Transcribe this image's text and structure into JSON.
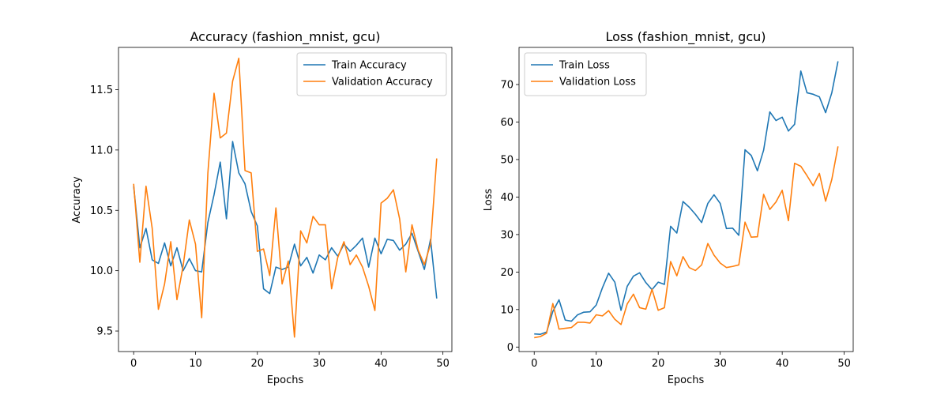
{
  "chart_data": [
    {
      "type": "line",
      "title": "Accuracy (fashion_mnist, gcu)",
      "xlabel": "Epochs",
      "ylabel": "Accuracy",
      "xlim": [
        -2.45,
        51.45
      ],
      "ylim": [
        9.33,
        11.85
      ],
      "xticks": [
        0,
        10,
        20,
        30,
        40,
        50
      ],
      "yticks": [
        9.5,
        10.0,
        10.5,
        11.0,
        11.5
      ],
      "legend_position": "top-right",
      "x": [
        0,
        1,
        2,
        3,
        4,
        5,
        6,
        7,
        8,
        9,
        10,
        11,
        12,
        13,
        14,
        15,
        16,
        17,
        18,
        19,
        20,
        21,
        22,
        23,
        24,
        25,
        26,
        27,
        28,
        29,
        30,
        31,
        32,
        33,
        34,
        35,
        36,
        37,
        38,
        39,
        40,
        41,
        42,
        43,
        44,
        45,
        46,
        47,
        48,
        49
      ],
      "series": [
        {
          "name": "Train Accuracy",
          "color": "#1f77b4",
          "values": [
            10.7,
            10.19,
            10.35,
            10.09,
            10.06,
            10.23,
            10.04,
            10.19,
            10.0,
            10.1,
            10.0,
            9.99,
            10.4,
            10.63,
            10.9,
            10.43,
            11.07,
            10.81,
            10.72,
            10.49,
            10.37,
            9.85,
            9.81,
            10.03,
            10.01,
            10.03,
            10.22,
            10.04,
            10.11,
            9.98,
            10.13,
            10.09,
            10.19,
            10.12,
            10.22,
            10.16,
            10.21,
            10.27,
            10.03,
            10.27,
            10.14,
            10.26,
            10.25,
            10.17,
            10.22,
            10.31,
            10.16,
            10.01,
            10.26,
            9.77
          ]
        },
        {
          "name": "Validation Accuracy",
          "color": "#ff7f0e",
          "values": [
            10.72,
            10.07,
            10.7,
            10.35,
            9.68,
            9.89,
            10.24,
            9.76,
            10.04,
            10.42,
            10.22,
            9.61,
            10.81,
            11.47,
            11.1,
            11.14,
            11.57,
            11.76,
            10.83,
            10.81,
            10.16,
            10.18,
            9.96,
            10.52,
            9.89,
            10.08,
            9.45,
            10.33,
            10.23,
            10.45,
            10.38,
            10.38,
            9.85,
            10.11,
            10.24,
            10.05,
            10.13,
            10.03,
            9.87,
            9.67,
            10.56,
            10.6,
            10.67,
            10.43,
            9.99,
            10.38,
            10.17,
            10.05,
            10.22,
            10.93
          ]
        }
      ]
    },
    {
      "type": "line",
      "title": "Loss (fashion_mnist, gcu)",
      "xlabel": "Epochs",
      "ylabel": "Loss",
      "xlim": [
        -2.45,
        51.45
      ],
      "ylim": [
        -1.2,
        79.9
      ],
      "xticks": [
        0,
        10,
        20,
        30,
        40,
        50
      ],
      "yticks": [
        0,
        10,
        20,
        30,
        40,
        50,
        60,
        70
      ],
      "legend_position": "top-left",
      "x": [
        0,
        1,
        2,
        3,
        4,
        5,
        6,
        7,
        8,
        9,
        10,
        11,
        12,
        13,
        14,
        15,
        16,
        17,
        18,
        19,
        20,
        21,
        22,
        23,
        24,
        25,
        26,
        27,
        28,
        29,
        30,
        31,
        32,
        33,
        34,
        35,
        36,
        37,
        38,
        39,
        40,
        41,
        42,
        43,
        44,
        45,
        46,
        47,
        48,
        49
      ],
      "series": [
        {
          "name": "Train Loss",
          "color": "#1f77b4",
          "values": [
            3.5,
            3.4,
            4.0,
            9.5,
            12.6,
            7.2,
            6.9,
            8.6,
            9.3,
            9.4,
            11.2,
            15.8,
            19.7,
            17.3,
            9.8,
            16.2,
            18.9,
            19.8,
            17.2,
            15.3,
            17.3,
            16.7,
            32.2,
            30.4,
            38.8,
            37.3,
            35.4,
            33.2,
            38.3,
            40.6,
            38.3,
            31.6,
            31.7,
            29.8,
            52.6,
            51.1,
            47.0,
            52.5,
            62.7,
            60.4,
            61.3,
            57.6,
            59.4,
            73.6,
            67.8,
            67.4,
            66.7,
            62.5,
            67.8,
            76.2
          ]
        },
        {
          "name": "Validation Loss",
          "color": "#ff7f0e",
          "values": [
            2.5,
            2.8,
            3.7,
            11.6,
            4.8,
            5.0,
            5.2,
            6.6,
            6.6,
            6.4,
            8.6,
            8.3,
            9.7,
            7.4,
            6.0,
            11.5,
            14.1,
            10.5,
            10.1,
            15.4,
            9.8,
            10.5,
            22.8,
            19.0,
            24.1,
            21.2,
            20.4,
            21.9,
            27.6,
            24.5,
            22.4,
            21.2,
            21.5,
            21.9,
            33.3,
            29.3,
            29.4,
            40.7,
            36.7,
            38.7,
            41.8,
            33.7,
            49.0,
            48.2,
            45.7,
            43.0,
            46.3,
            38.9,
            44.7,
            53.5
          ]
        }
      ]
    }
  ]
}
